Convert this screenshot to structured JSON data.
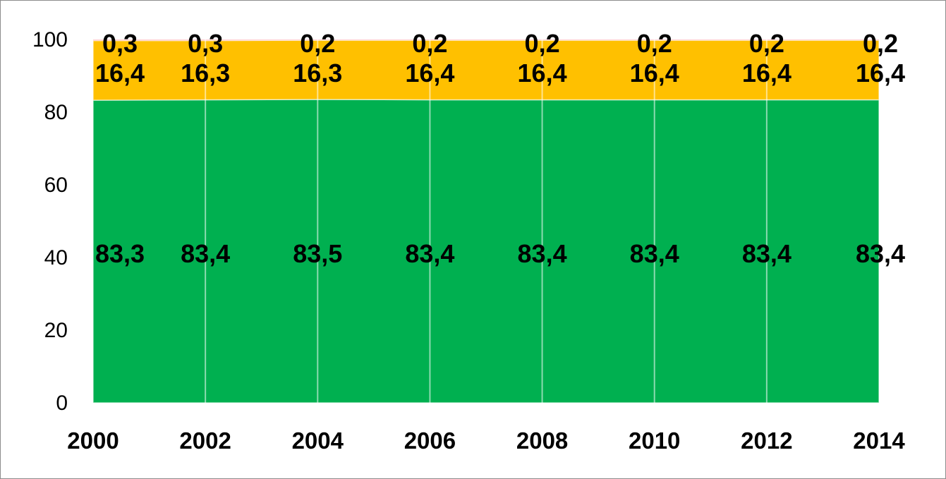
{
  "chart_data": {
    "type": "area",
    "stacked": true,
    "x": [
      "2000",
      "2002",
      "2004",
      "2006",
      "2008",
      "2010",
      "2012",
      "2014"
    ],
    "series": [
      {
        "values": [
          83.3,
          83.4,
          83.5,
          83.4,
          83.4,
          83.4,
          83.4,
          83.4
        ],
        "labels": [
          "83,3",
          "83,4",
          "83,5",
          "83,4",
          "83,4",
          "83,4",
          "83,4",
          "83,4"
        ],
        "color": "#00B050"
      },
      {
        "values": [
          16.4,
          16.3,
          16.3,
          16.4,
          16.4,
          16.4,
          16.4,
          16.4
        ],
        "labels": [
          "16,4",
          "16,3",
          "16,3",
          "16,4",
          "16,4",
          "16,4",
          "16,4",
          "16,4"
        ],
        "color": "#FFC000"
      },
      {
        "values": [
          0.3,
          0.3,
          0.2,
          0.2,
          0.2,
          0.2,
          0.2,
          0.2
        ],
        "labels": [
          "0,3",
          "0,3",
          "0,2",
          "0,2",
          "0,2",
          "0,2",
          "0,2",
          "0,2"
        ],
        "color": "#FF7F7F"
      }
    ],
    "ylim": [
      0,
      100
    ],
    "yticks": [
      "0",
      "20",
      "40",
      "60",
      "80",
      "100"
    ],
    "xgrid": true,
    "legend": "none",
    "title": "",
    "xlabel": "",
    "ylabel": ""
  }
}
